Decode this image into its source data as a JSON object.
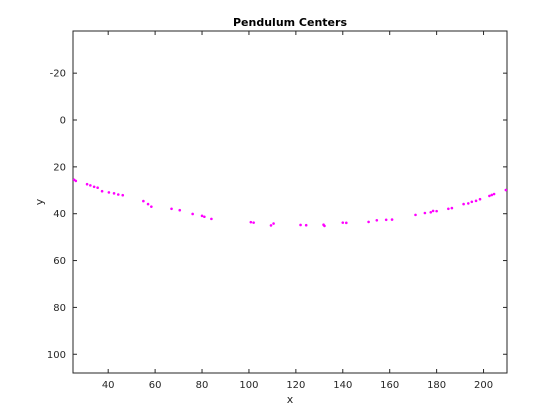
{
  "chart_data": {
    "type": "scatter",
    "title": "Pendulum Centers",
    "xlabel": "x",
    "ylabel": "y",
    "xlim": [
      25,
      210
    ],
    "ylim": [
      -38,
      108
    ],
    "y_axis_reversed": true,
    "grid": false,
    "legend": "none",
    "marker_color": "#ff00ff",
    "x_ticks": [
      40,
      60,
      80,
      100,
      120,
      140,
      160,
      180,
      200
    ],
    "x_tick_labels": [
      "40",
      "60",
      "80",
      "100",
      "120",
      "140",
      "160",
      "180",
      "200"
    ],
    "y_ticks": [
      -20,
      0,
      20,
      40,
      60,
      80,
      100
    ],
    "y_tick_labels": [
      "-20",
      "0",
      "20",
      "40",
      "60",
      "80",
      "100"
    ],
    "x": [
      25.5,
      26.2,
      31.0,
      32.4,
      34.0,
      35.5,
      37.4,
      40.3,
      42.5,
      44.3,
      46.2,
      55.0,
      57.0,
      58.4,
      67.0,
      70.5,
      76.0,
      80.0,
      81.0,
      84.0,
      100.8,
      102.0,
      109.4,
      110.5,
      122.0,
      124.4,
      131.8,
      132.2,
      140.0,
      141.5,
      151.0,
      154.5,
      158.5,
      161.0,
      171.0,
      175.0,
      177.5,
      178.5,
      180.0,
      185.0,
      186.5,
      191.5,
      193.5,
      195.0,
      196.8,
      198.5,
      202.5,
      203.5,
      204.5,
      209.5
    ],
    "y": [
      25.5,
      26.0,
      27.4,
      27.9,
      28.5,
      28.9,
      30.4,
      30.9,
      31.3,
      31.8,
      32.1,
      34.6,
      35.9,
      37.0,
      37.9,
      38.5,
      40.1,
      40.9,
      41.3,
      42.2,
      43.6,
      43.8,
      45.0,
      44.2,
      44.8,
      44.9,
      44.7,
      45.2,
      43.8,
      43.9,
      43.5,
      42.8,
      42.6,
      42.5,
      40.5,
      39.7,
      39.4,
      38.8,
      38.9,
      37.9,
      37.6,
      35.9,
      35.6,
      34.9,
      34.5,
      33.8,
      32.4,
      32.0,
      31.6,
      29.9
    ]
  }
}
